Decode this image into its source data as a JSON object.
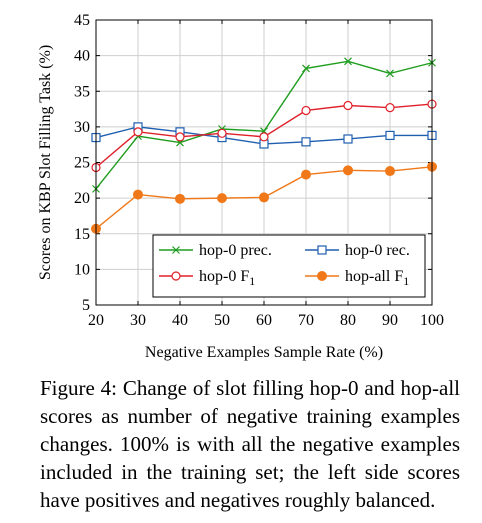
{
  "chart_data": {
    "type": "line",
    "xlabel": "Negative Examples Sample Rate (%)",
    "ylabel": "Scores on KBP Slot Filling Task (%)",
    "x": [
      20,
      30,
      40,
      50,
      60,
      70,
      80,
      90,
      100
    ],
    "xticks": [
      "20",
      "30",
      "40",
      "50",
      "60",
      "70",
      "80",
      "90",
      "100"
    ],
    "yticks": [
      "5",
      "10",
      "15",
      "20",
      "25",
      "30",
      "35",
      "40",
      "45"
    ],
    "xlim": [
      20,
      100
    ],
    "ylim": [
      5,
      45
    ],
    "grid": true,
    "legend_position": "bottom-right",
    "series": [
      {
        "name": "hop-0 prec.",
        "marker": "cross",
        "color": "#1f9d1f",
        "values": [
          21.3,
          28.7,
          27.8,
          29.7,
          29.4,
          38.2,
          39.2,
          37.5,
          39.0
        ]
      },
      {
        "name": "hop-0 rec.",
        "marker": "square",
        "color": "#1f5fb0",
        "values": [
          28.5,
          30.0,
          29.3,
          28.5,
          27.6,
          27.9,
          28.3,
          28.8,
          28.8
        ]
      },
      {
        "name": "hop-0 F",
        "subscript": "1",
        "marker": "circle-open",
        "color": "#e0202a",
        "values": [
          24.3,
          29.3,
          28.6,
          29.1,
          28.6,
          32.3,
          33.0,
          32.7,
          33.2
        ]
      },
      {
        "name": "hop-all F",
        "subscript": "1",
        "marker": "circle-filled",
        "color": "#f07818",
        "values": [
          15.7,
          20.5,
          19.9,
          20.0,
          20.1,
          23.3,
          23.9,
          23.8,
          24.4
        ]
      }
    ]
  },
  "caption": "Figure 4:  Change of slot filling hop-0 and hop-all scores as number of negative training examples changes.  100% is with all the negative examples included in the training set; the left side scores have positives and negatives roughly balanced."
}
